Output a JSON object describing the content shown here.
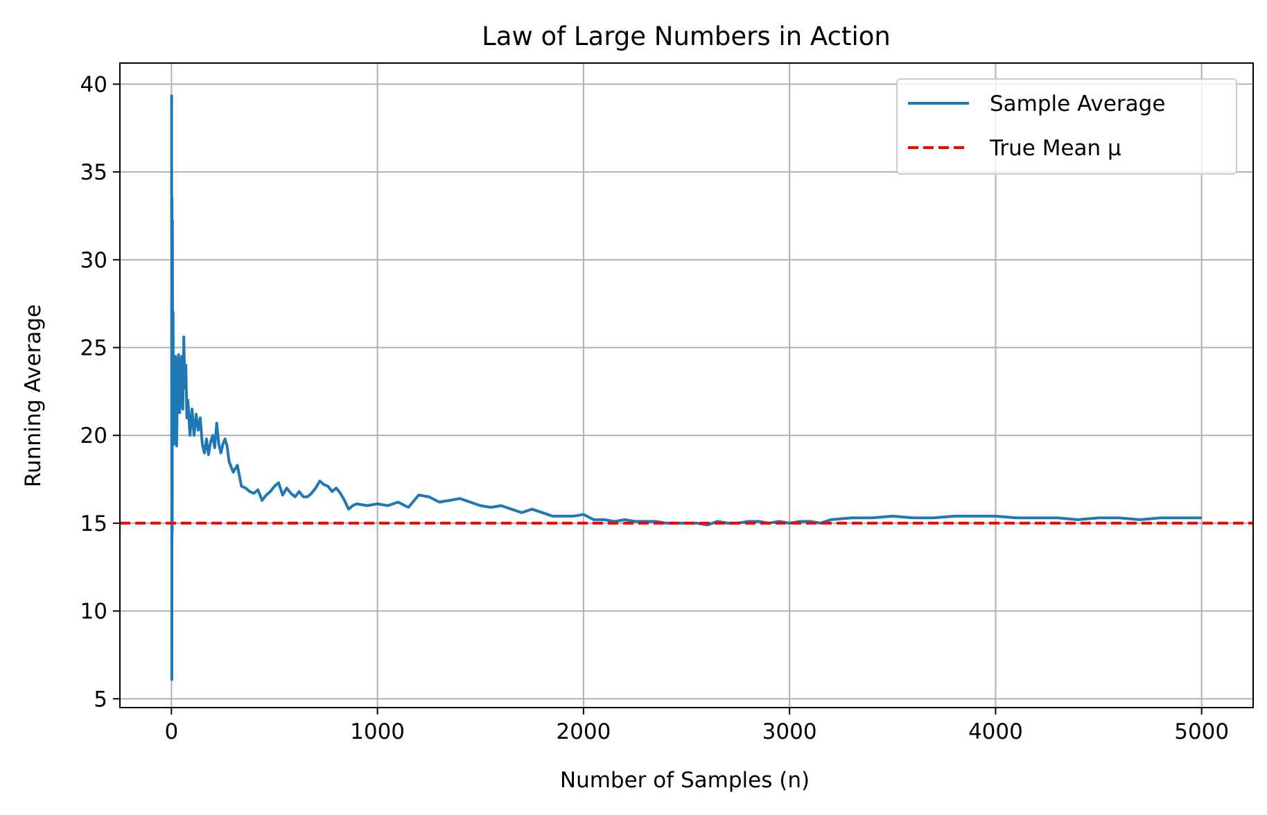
{
  "chart_data": {
    "type": "line",
    "title": "Law of Large Numbers in Action",
    "xlabel": "Number of Samples (n)",
    "ylabel": "Running Average",
    "xlim": [
      -250,
      5250
    ],
    "ylim": [
      4.5,
      41.2
    ],
    "x_ticks": [
      0,
      1000,
      2000,
      3000,
      4000,
      5000
    ],
    "y_ticks": [
      5,
      10,
      15,
      20,
      25,
      30,
      35,
      40
    ],
    "grid": true,
    "legend_position": "top-right",
    "series": [
      {
        "name": "Sample Average",
        "color": "#1f77b4",
        "style": "solid",
        "x": [
          1,
          2,
          3,
          4,
          5,
          6,
          8,
          10,
          12,
          15,
          18,
          20,
          25,
          30,
          35,
          40,
          45,
          50,
          55,
          60,
          65,
          70,
          75,
          80,
          90,
          100,
          110,
          120,
          130,
          140,
          150,
          160,
          170,
          180,
          190,
          200,
          210,
          220,
          230,
          240,
          250,
          260,
          270,
          280,
          300,
          320,
          340,
          360,
          380,
          400,
          420,
          440,
          460,
          480,
          500,
          520,
          540,
          560,
          580,
          600,
          620,
          640,
          660,
          680,
          700,
          720,
          740,
          760,
          780,
          800,
          820,
          840,
          860,
          880,
          900,
          950,
          1000,
          1050,
          1100,
          1150,
          1200,
          1250,
          1300,
          1350,
          1400,
          1450,
          1500,
          1550,
          1600,
          1650,
          1700,
          1750,
          1800,
          1850,
          1900,
          1950,
          2000,
          2050,
          2100,
          2150,
          2200,
          2250,
          2300,
          2350,
          2400,
          2450,
          2500,
          2550,
          2600,
          2650,
          2700,
          2750,
          2800,
          2850,
          2900,
          2950,
          3000,
          3050,
          3100,
          3150,
          3200,
          3300,
          3400,
          3500,
          3600,
          3700,
          3800,
          3850,
          3900,
          4000,
          4100,
          4200,
          4300,
          4400,
          4500,
          4600,
          4700,
          4800,
          4900,
          5000
        ],
        "y": [
          39.4,
          6.1,
          33.5,
          14.5,
          32.2,
          20.5,
          27.0,
          21.0,
          19.5,
          23.0,
          22.5,
          24.5,
          19.4,
          23.0,
          24.6,
          21.3,
          23.8,
          24.5,
          21.5,
          25.6,
          22.7,
          24.0,
          21.0,
          22.0,
          20.0,
          21.5,
          20.0,
          21.2,
          20.3,
          21.0,
          19.5,
          19.0,
          19.8,
          18.9,
          19.6,
          20.0,
          19.3,
          20.7,
          19.5,
          19.0,
          19.5,
          19.8,
          19.4,
          18.5,
          17.9,
          18.3,
          17.1,
          17.0,
          16.8,
          16.7,
          16.9,
          16.3,
          16.6,
          16.8,
          17.1,
          17.3,
          16.6,
          17.0,
          16.7,
          16.5,
          16.8,
          16.5,
          16.5,
          16.7,
          17.0,
          17.4,
          17.2,
          17.1,
          16.8,
          17.0,
          16.7,
          16.3,
          15.8,
          16.0,
          16.1,
          16.0,
          16.1,
          16.0,
          16.2,
          15.9,
          16.6,
          16.5,
          16.2,
          16.3,
          16.4,
          16.2,
          16.0,
          15.9,
          16.0,
          15.8,
          15.6,
          15.8,
          15.6,
          15.4,
          15.4,
          15.4,
          15.5,
          15.2,
          15.2,
          15.1,
          15.2,
          15.1,
          15.1,
          15.1,
          15.0,
          15.0,
          15.0,
          15.0,
          14.9,
          15.1,
          15.0,
          15.0,
          15.1,
          15.1,
          15.0,
          15.1,
          15.0,
          15.1,
          15.1,
          15.0,
          15.2,
          15.3,
          15.3,
          15.4,
          15.3,
          15.3,
          15.4,
          15.4,
          15.4,
          15.4,
          15.3,
          15.3,
          15.3,
          15.2,
          15.3,
          15.3,
          15.2,
          15.3,
          15.3,
          15.3
        ]
      },
      {
        "name": "True Mean μ",
        "color": "#ff0000",
        "style": "dashed",
        "y": 15
      }
    ]
  }
}
